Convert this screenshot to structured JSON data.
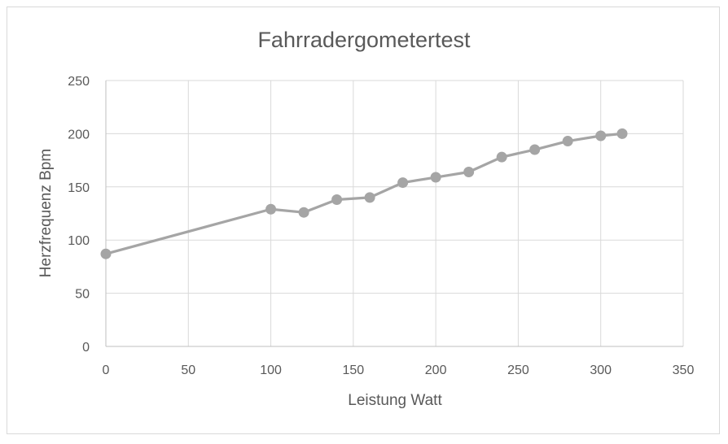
{
  "chart_data": {
    "type": "line",
    "title": "Fahrradergometertest",
    "xlabel": "Leistung Watt",
    "ylabel": "Herzfrequenz Bpm",
    "xlim": [
      0,
      350
    ],
    "ylim": [
      0,
      250
    ],
    "xticks": [
      0,
      50,
      100,
      150,
      200,
      250,
      300,
      350
    ],
    "yticks": [
      0,
      50,
      100,
      150,
      200,
      250
    ],
    "grid": true,
    "legend": "none",
    "series": [
      {
        "color": "#a5a5a5",
        "marker": "circle",
        "points": [
          {
            "x": 0,
            "y": 87
          },
          {
            "x": 100,
            "y": 129
          },
          {
            "x": 120,
            "y": 126
          },
          {
            "x": 140,
            "y": 138
          },
          {
            "x": 160,
            "y": 140
          },
          {
            "x": 180,
            "y": 154
          },
          {
            "x": 200,
            "y": 159
          },
          {
            "x": 220,
            "y": 164
          },
          {
            "x": 240,
            "y": 178
          },
          {
            "x": 260,
            "y": 185
          },
          {
            "x": 280,
            "y": 193
          },
          {
            "x": 300,
            "y": 198
          },
          {
            "x": 313,
            "y": 200
          }
        ]
      }
    ]
  }
}
